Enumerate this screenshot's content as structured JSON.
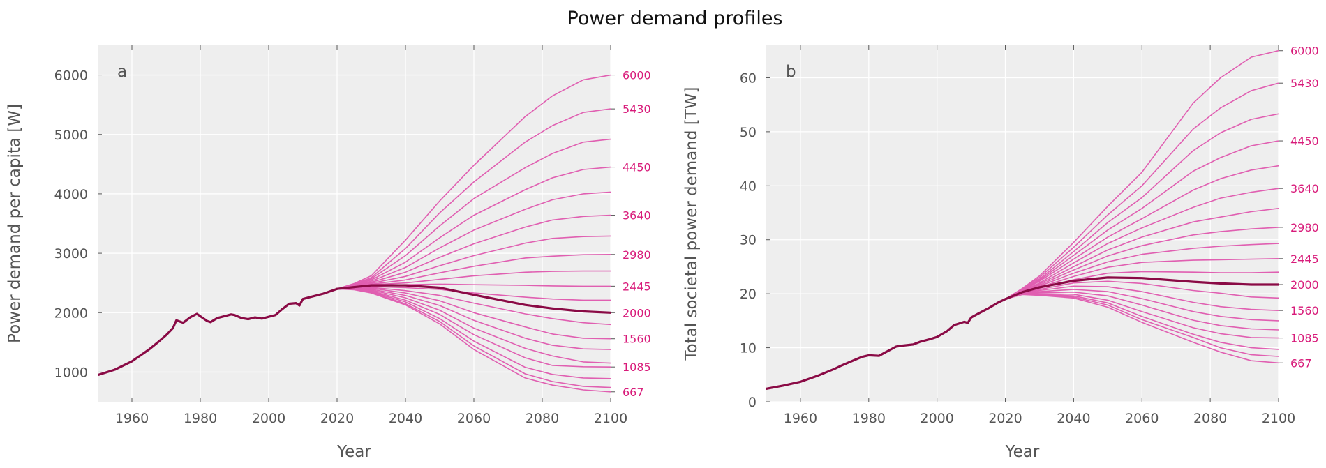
{
  "title": "Power demand profiles",
  "colors": {
    "scenario": "#e05fb1",
    "baseline": "#8a0a45",
    "right_label": "#d81b7a",
    "panel_bg": "#eeeeee",
    "grid": "#ffffff"
  },
  "chart_data": [
    {
      "type": "line",
      "panel_label": "a",
      "xlabel": "Year",
      "ylabel": "Power demand per capita [W]",
      "xlim": [
        1950,
        2100
      ],
      "ylim": [
        500,
        6500
      ],
      "xticks": [
        1960,
        1980,
        2000,
        2020,
        2040,
        2060,
        2080,
        2100
      ],
      "yticks": [
        1000,
        2000,
        3000,
        4000,
        5000,
        6000
      ],
      "grid": true,
      "right_tick_labels": [
        {
          "value": 6000,
          "label": "6000"
        },
        {
          "value": 5430,
          "label": "5430"
        },
        {
          "value": 4450,
          "label": "4450"
        },
        {
          "value": 3640,
          "label": "3640"
        },
        {
          "value": 2980,
          "label": "2980"
        },
        {
          "value": 2445,
          "label": "2445"
        },
        {
          "value": 2000,
          "label": "2000"
        },
        {
          "value": 1560,
          "label": "1560"
        },
        {
          "value": 1085,
          "label": "1085"
        },
        {
          "value": 667,
          "label": "667"
        }
      ],
      "historical": {
        "x": [
          1950,
          1955,
          1960,
          1965,
          1968,
          1970,
          1972,
          1973,
          1975,
          1977,
          1979,
          1980,
          1982,
          1983,
          1985,
          1987,
          1989,
          1990,
          1992,
          1994,
          1996,
          1998,
          2000,
          2002,
          2004,
          2006,
          2008,
          2009,
          2010,
          2012,
          2014,
          2016,
          2018,
          2020
        ],
        "y": [
          950,
          1040,
          1180,
          1380,
          1520,
          1620,
          1740,
          1870,
          1830,
          1920,
          1980,
          1940,
          1860,
          1840,
          1910,
          1940,
          1970,
          1960,
          1910,
          1890,
          1920,
          1900,
          1930,
          1960,
          2060,
          2150,
          2160,
          2120,
          2230,
          2260,
          2290,
          2320,
          2360,
          2400
        ]
      },
      "scenario_x": [
        2020,
        2025,
        2030,
        2040,
        2050,
        2060,
        2075,
        2083,
        2092,
        2100
      ],
      "scenarios": [
        {
          "y": [
            2400,
            2490,
            2620,
            3220,
            3880,
            4480,
            5300,
            5650,
            5920,
            6000
          ]
        },
        {
          "y": [
            2400,
            2480,
            2590,
            3080,
            3680,
            4200,
            4870,
            5150,
            5370,
            5430
          ]
        },
        {
          "y": [
            2400,
            2470,
            2570,
            2960,
            3460,
            3920,
            4440,
            4680,
            4870,
            4920
          ]
        },
        {
          "y": [
            2400,
            2460,
            2550,
            2850,
            3260,
            3640,
            4070,
            4270,
            4410,
            4450
          ]
        },
        {
          "y": [
            2400,
            2455,
            2530,
            2760,
            3090,
            3390,
            3740,
            3900,
            4000,
            4030
          ]
        },
        {
          "y": [
            2400,
            2450,
            2510,
            2680,
            2930,
            3160,
            3440,
            3560,
            3620,
            3640
          ]
        },
        {
          "y": [
            2400,
            2445,
            2495,
            2610,
            2790,
            2960,
            3170,
            3250,
            3280,
            3290
          ]
        },
        {
          "y": [
            2400,
            2440,
            2480,
            2550,
            2670,
            2780,
            2920,
            2950,
            2975,
            2980
          ]
        },
        {
          "y": [
            2400,
            2435,
            2470,
            2500,
            2560,
            2620,
            2680,
            2695,
            2700,
            2700
          ]
        },
        {
          "y": [
            2400,
            2430,
            2455,
            2470,
            2480,
            2470,
            2460,
            2450,
            2445,
            2445
          ]
        },
        {
          "y": [
            2400,
            2425,
            2440,
            2420,
            2390,
            2330,
            2260,
            2230,
            2210,
            2210
          ]
        },
        {
          "y": [
            2400,
            2420,
            2425,
            2370,
            2290,
            2160,
            1980,
            1900,
            1830,
            1800
          ]
        },
        {
          "y": [
            2400,
            2415,
            2410,
            2330,
            2200,
            2000,
            1760,
            1640,
            1570,
            1560
          ]
        },
        {
          "y": [
            2400,
            2410,
            2395,
            2290,
            2120,
            1870,
            1570,
            1450,
            1390,
            1380
          ]
        },
        {
          "y": [
            2400,
            2405,
            2380,
            2250,
            2040,
            1740,
            1400,
            1270,
            1170,
            1150
          ]
        },
        {
          "y": [
            2400,
            2400,
            2365,
            2210,
            1970,
            1630,
            1240,
            1110,
            1090,
            1085
          ]
        },
        {
          "y": [
            2400,
            2395,
            2350,
            2180,
            1900,
            1520,
            1080,
            960,
            900,
            890
          ]
        },
        {
          "y": [
            2400,
            2390,
            2340,
            2150,
            1850,
            1440,
            970,
            840,
            760,
            740
          ]
        },
        {
          "y": [
            2400,
            2385,
            2330,
            2130,
            1810,
            1380,
            900,
            780,
            700,
            667
          ]
        }
      ],
      "baseline": {
        "x": [
          2020,
          2025,
          2030,
          2040,
          2050,
          2060,
          2075,
          2083,
          2092,
          2100
        ],
        "y": [
          2400,
          2430,
          2460,
          2460,
          2420,
          2300,
          2130,
          2070,
          2020,
          2000
        ]
      }
    },
    {
      "type": "line",
      "panel_label": "b",
      "xlabel": "Year",
      "ylabel": "Total societal power demand [TW]",
      "xlim": [
        1950,
        2100
      ],
      "ylim": [
        0,
        66
      ],
      "xticks": [
        1960,
        1980,
        2000,
        2020,
        2040,
        2060,
        2080,
        2100
      ],
      "yticks": [
        0,
        10,
        20,
        30,
        40,
        50,
        60
      ],
      "grid": true,
      "right_tick_labels": [
        {
          "value": 65,
          "label": "6000"
        },
        {
          "value": 59,
          "label": "5430"
        },
        {
          "value": 48.3,
          "label": "4450"
        },
        {
          "value": 39.5,
          "label": "3640"
        },
        {
          "value": 32.3,
          "label": "2980"
        },
        {
          "value": 26.5,
          "label": "2445"
        },
        {
          "value": 21.7,
          "label": "2000"
        },
        {
          "value": 16.9,
          "label": "1560"
        },
        {
          "value": 11.8,
          "label": "1085"
        },
        {
          "value": 7.2,
          "label": "667"
        }
      ],
      "historical": {
        "x": [
          1950,
          1955,
          1960,
          1965,
          1970,
          1972,
          1975,
          1978,
          1980,
          1983,
          1985,
          1988,
          1990,
          1993,
          1995,
          1998,
          2000,
          2003,
          2005,
          2008,
          2009,
          2010,
          2012,
          2015,
          2018,
          2020
        ],
        "y": [
          2.4,
          3.0,
          3.7,
          4.8,
          6.1,
          6.7,
          7.5,
          8.3,
          8.6,
          8.5,
          9.2,
          10.2,
          10.4,
          10.6,
          11.1,
          11.6,
          12.0,
          13.1,
          14.2,
          14.8,
          14.6,
          15.6,
          16.3,
          17.3,
          18.4,
          19.0
        ]
      },
      "scenario_x": [
        2020,
        2025,
        2030,
        2040,
        2050,
        2060,
        2075,
        2083,
        2092,
        2100
      ],
      "scenarios": [
        {
          "y": [
            19.0,
            21.0,
            23.3,
            29.5,
            36.2,
            42.5,
            55.3,
            60.0,
            63.8,
            65.0
          ]
        },
        {
          "y": [
            19.0,
            20.9,
            23.0,
            28.6,
            34.6,
            40.0,
            50.5,
            54.4,
            57.6,
            59.0
          ]
        },
        {
          "y": [
            19.0,
            20.8,
            22.7,
            27.8,
            33.2,
            37.8,
            46.5,
            49.8,
            52.3,
            53.3
          ]
        },
        {
          "y": [
            19.0,
            20.7,
            22.5,
            27.1,
            31.8,
            35.8,
            42.7,
            45.2,
            47.4,
            48.3
          ]
        },
        {
          "y": [
            19.0,
            20.6,
            22.3,
            26.4,
            30.5,
            33.9,
            39.2,
            41.3,
            42.9,
            43.7
          ]
        },
        {
          "y": [
            19.0,
            20.5,
            22.0,
            25.7,
            29.3,
            32.2,
            36.0,
            37.7,
            38.8,
            39.5
          ]
        },
        {
          "y": [
            19.0,
            20.45,
            21.8,
            25.0,
            28.1,
            30.5,
            33.3,
            34.2,
            35.2,
            35.8
          ]
        },
        {
          "y": [
            19.0,
            20.4,
            21.6,
            24.4,
            27.0,
            28.9,
            30.9,
            31.5,
            32.0,
            32.3
          ]
        },
        {
          "y": [
            19.0,
            20.35,
            21.4,
            23.8,
            25.9,
            27.3,
            28.4,
            28.8,
            29.1,
            29.3
          ]
        },
        {
          "y": [
            19.0,
            20.3,
            21.2,
            23.2,
            24.9,
            25.8,
            26.2,
            26.3,
            26.4,
            26.5
          ]
        },
        {
          "y": [
            19.0,
            20.25,
            21.0,
            22.6,
            23.8,
            24.1,
            24.0,
            23.9,
            23.9,
            24.0
          ]
        },
        {
          "y": [
            19.0,
            20.2,
            20.8,
            22.0,
            22.3,
            21.9,
            20.6,
            20.1,
            19.4,
            19.2
          ]
        },
        {
          "y": [
            19.0,
            20.15,
            20.6,
            21.4,
            21.3,
            20.4,
            18.4,
            17.6,
            17.1,
            16.9
          ]
        },
        {
          "y": [
            19.0,
            20.1,
            20.4,
            20.8,
            20.4,
            19.1,
            16.7,
            15.8,
            15.2,
            15.0
          ]
        },
        {
          "y": [
            19.0,
            20.05,
            20.2,
            20.3,
            19.6,
            17.9,
            15.1,
            14.1,
            13.5,
            13.3
          ]
        },
        {
          "y": [
            19.0,
            20.0,
            20.0,
            19.9,
            18.8,
            16.7,
            13.7,
            12.6,
            11.9,
            11.8
          ]
        },
        {
          "y": [
            19.0,
            19.95,
            19.9,
            19.6,
            18.3,
            15.8,
            12.5,
            11.0,
            10.0,
            9.7
          ]
        },
        {
          "y": [
            19.0,
            19.9,
            19.8,
            19.4,
            17.9,
            15.2,
            11.9,
            10.0,
            8.7,
            8.4
          ]
        },
        {
          "y": [
            19.0,
            19.85,
            19.7,
            19.2,
            17.5,
            14.7,
            11.0,
            9.2,
            7.6,
            7.2
          ]
        }
      ],
      "baseline": {
        "x": [
          2020,
          2025,
          2030,
          2040,
          2050,
          2060,
          2075,
          2083,
          2092,
          2100
        ],
        "y": [
          19.0,
          20.3,
          21.2,
          22.4,
          23.0,
          22.9,
          22.2,
          21.9,
          21.7,
          21.7
        ]
      }
    }
  ]
}
